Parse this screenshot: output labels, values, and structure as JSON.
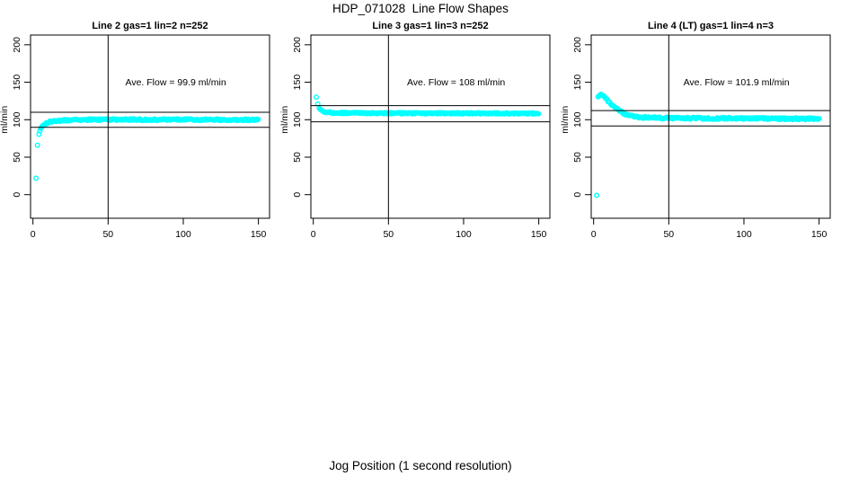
{
  "page": {
    "title": "HDP_071028  Line Flow Shapes",
    "xlabel": "Jog Position (1 second resolution)"
  },
  "colors": {
    "points": "#00FFFF",
    "lines": "#000000",
    "background": "#FFFFFF"
  },
  "chart_data": [
    {
      "type": "scatter",
      "title": "Line 2 gas=1 lin=2 n=252",
      "annotation": "Ave. Flow =  99.9  ml/min",
      "annotation_xy": [
        95,
        150
      ],
      "ave_flow": 99.9,
      "ylabel": "ml/min",
      "x_ticks": [
        0,
        50,
        100,
        150
      ],
      "y_ticks": [
        0,
        50,
        100,
        150,
        200
      ],
      "xlim": [
        -1.6,
        157.4
      ],
      "ylim": [
        -31.5,
        213
      ],
      "ref_lines_y": [
        89.9,
        109.9
      ],
      "ref_line_x": 50,
      "grid": false,
      "solo_points": [
        [
          2,
          22
        ],
        [
          3,
          66
        ]
      ],
      "series": [
        {
          "name": "flow",
          "keypoints": [
            [
              4,
              81
            ],
            [
              5,
              87
            ],
            [
              6,
              90.5
            ],
            [
              7,
              92.8
            ],
            [
              8,
              94.4
            ],
            [
              10,
              96.3
            ],
            [
              12,
              97.4
            ],
            [
              15,
              98.4
            ],
            [
              20,
              99.2
            ],
            [
              25,
              99.6
            ],
            [
              30,
              99.8
            ],
            [
              40,
              100
            ],
            [
              60,
              100.1
            ],
            [
              100,
              100.1
            ],
            [
              150,
              100
            ]
          ],
          "step": 0.6,
          "jitter": 1.1
        }
      ]
    },
    {
      "type": "scatter",
      "title": "Line 3 gas=1 lin=3 n=252",
      "annotation": "Ave. Flow =  108  ml/min",
      "annotation_xy": [
        95,
        150
      ],
      "ave_flow": 108,
      "ylabel": "ml/min",
      "x_ticks": [
        0,
        50,
        100,
        150
      ],
      "y_ticks": [
        0,
        50,
        100,
        150,
        200
      ],
      "xlim": [
        -1.6,
        157.4
      ],
      "ylim": [
        -31.5,
        213
      ],
      "ref_lines_y": [
        97.2,
        118.8
      ],
      "ref_line_x": 50,
      "grid": false,
      "solo_points": [
        [
          2,
          130
        ],
        [
          3,
          121
        ]
      ],
      "series": [
        {
          "name": "flow",
          "keypoints": [
            [
              4,
              116
            ],
            [
              5,
              113.2
            ],
            [
              6,
              111.6
            ],
            [
              7,
              110.7
            ],
            [
              8,
              110.2
            ],
            [
              10,
              109.7
            ],
            [
              12,
              109.4
            ],
            [
              15,
              109.2
            ],
            [
              20,
              109
            ],
            [
              30,
              108.8
            ],
            [
              50,
              108.7
            ],
            [
              80,
              108.6
            ],
            [
              120,
              108.5
            ],
            [
              150,
              108.5
            ]
          ],
          "step": 0.6,
          "jitter": 0.9
        }
      ]
    },
    {
      "type": "scatter",
      "title": "Line 4 (LT) gas=1 lin=4 n=3",
      "annotation": "Ave. Flow =  101.9  ml/min",
      "annotation_xy": [
        95,
        150
      ],
      "ave_flow": 101.9,
      "ylabel": "ml/min",
      "x_ticks": [
        0,
        50,
        100,
        150
      ],
      "y_ticks": [
        0,
        50,
        100,
        150,
        200
      ],
      "xlim": [
        -1.6,
        157.4
      ],
      "ylim": [
        -31.5,
        213
      ],
      "ref_lines_y": [
        91.7,
        112.1
      ],
      "ref_line_x": 50,
      "grid": false,
      "solo_points": [
        [
          2,
          -1
        ]
      ],
      "series": [
        {
          "name": "flow",
          "keypoints": [
            [
              3,
              130.5
            ],
            [
              4,
              132.5
            ],
            [
              5,
              133
            ],
            [
              6,
              132
            ],
            [
              7,
              130.3
            ],
            [
              8,
              128.3
            ],
            [
              9,
              126.3
            ],
            [
              10,
              124.3
            ],
            [
              11,
              122.3
            ],
            [
              12,
              120.3
            ],
            [
              13,
              118.4
            ],
            [
              14,
              116.6
            ],
            [
              15,
              115
            ],
            [
              16,
              113.4
            ],
            [
              17,
              112
            ],
            [
              18,
              110.7
            ],
            [
              19,
              109.5
            ],
            [
              20,
              108.5
            ],
            [
              22,
              106.9
            ],
            [
              24,
              105.7
            ],
            [
              26,
              104.8
            ],
            [
              28,
              104.1
            ],
            [
              30,
              103.6
            ],
            [
              34,
              103
            ],
            [
              38,
              102.7
            ],
            [
              45,
              102.3
            ],
            [
              50,
              102.2
            ],
            [
              60,
              102
            ],
            [
              80,
              101.8
            ],
            [
              100,
              101.6
            ],
            [
              120,
              101.4
            ],
            [
              150,
              101.1
            ]
          ],
          "step": 0.6,
          "jitter": 1.2
        }
      ]
    }
  ]
}
